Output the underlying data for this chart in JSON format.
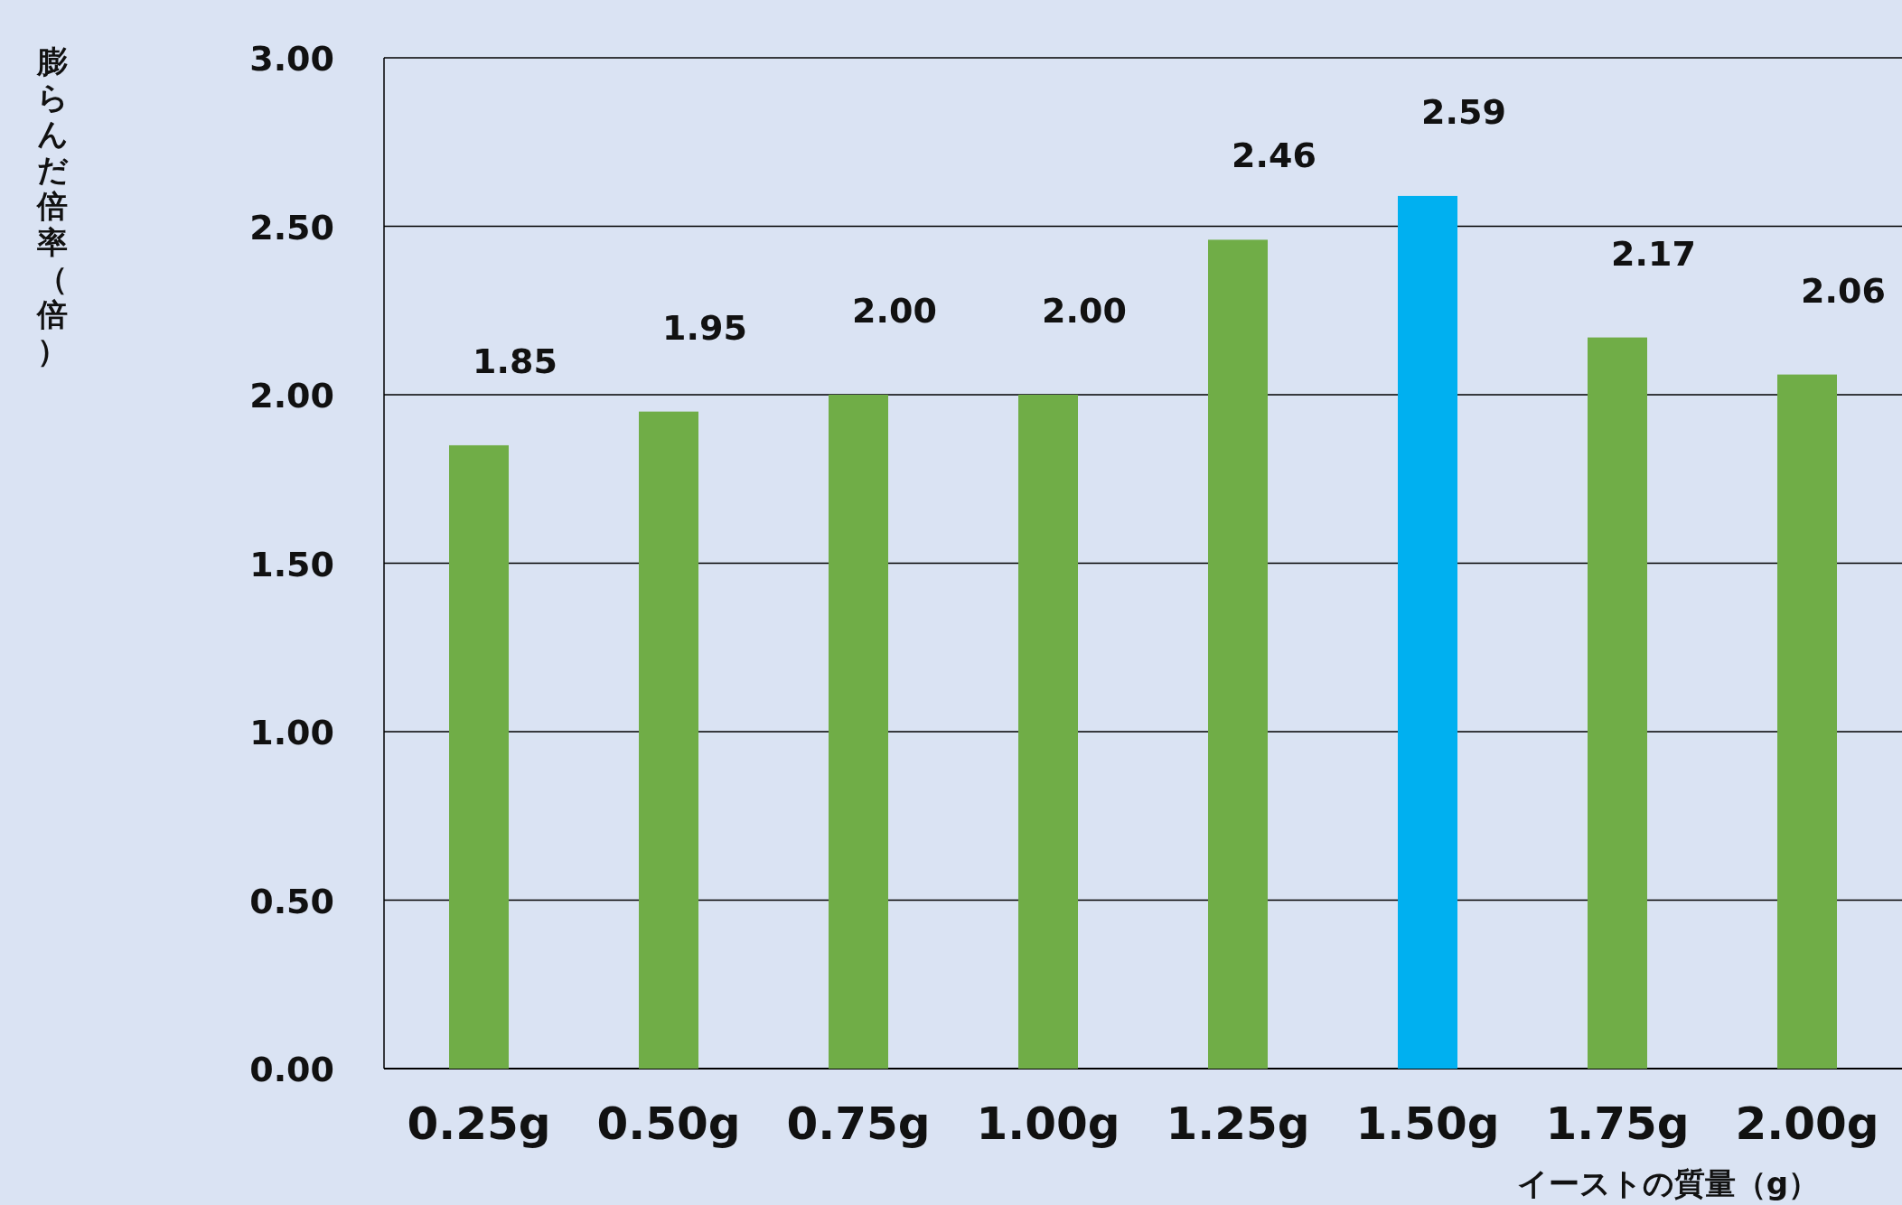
{
  "chart_data": {
    "type": "bar",
    "ylabel": "膨らんだ倍率（倍）",
    "xlabel": "イーストの質量（g）",
    "categories": [
      "0.25g",
      "0.50g",
      "0.75g",
      "1.00g",
      "1.25g",
      "1.50g",
      "1.75g",
      "2.00g"
    ],
    "values": [
      1.85,
      1.95,
      2.0,
      2.0,
      2.46,
      2.59,
      2.17,
      2.06
    ],
    "colors": [
      "#70ad47",
      "#70ad47",
      "#70ad47",
      "#70ad47",
      "#70ad47",
      "#00b0f0",
      "#70ad47",
      "#70ad47"
    ],
    "value_labels": [
      "1.85",
      "1.95",
      "2.00",
      "2.00",
      "2.46",
      "2.59",
      "2.17",
      "2.06"
    ],
    "ylim": [
      0,
      3
    ],
    "yticks": [
      {
        "value": 0,
        "label": "0.00"
      },
      {
        "value": 0.5,
        "label": "0.50"
      },
      {
        "value": 1,
        "label": "1.00"
      },
      {
        "value": 1.5,
        "label": "1.50"
      },
      {
        "value": 2,
        "label": "2.00"
      },
      {
        "value": 2.5,
        "label": "2.50"
      },
      {
        "value": 3,
        "label": "3.00"
      }
    ],
    "grid": "y"
  }
}
